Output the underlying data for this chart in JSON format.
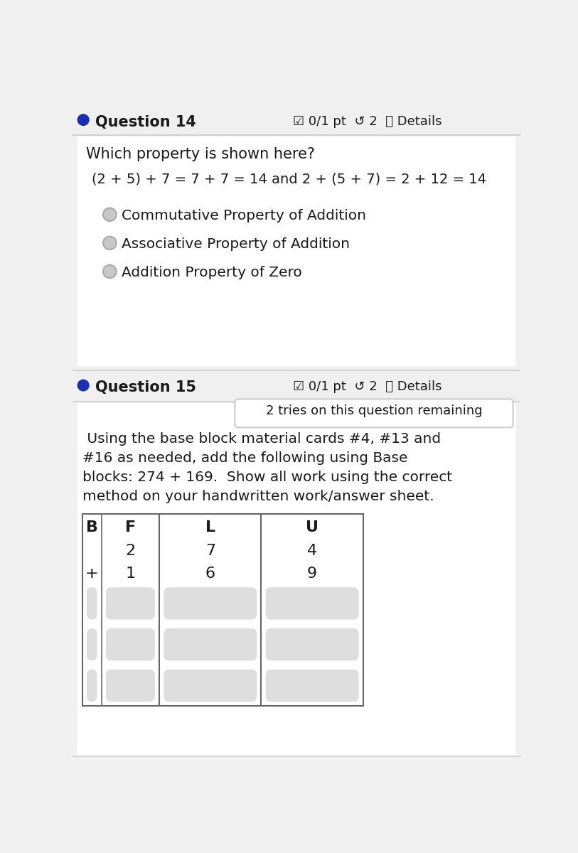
{
  "bg_color": "#f0f0f0",
  "white": "#ffffff",
  "dark_text": "#1a1a1a",
  "blue_dot": "#1a2eb5",
  "radio_fill": "#c8c8c8",
  "radio_border": "#aaaaaa",
  "tooltip_bg": "#ffffff",
  "tooltip_border": "#cccccc",
  "table_border": "#666666",
  "table_cell_bg": "#dedede",
  "separator": "#cccccc",
  "q14_label": "Question 14",
  "q14_header_right": "☑ 0/1 pt  ↺ 2  ⓘ Details",
  "q14_prompt": "Which property is shown here?",
  "q14_equation": "(2 + 5) + 7 = 7 + 7 = 14 and 2 + (5 + 7) = 2 + 12 = 14",
  "q14_options": [
    "Commutative Property of Addition",
    "Associative Property of Addition",
    "Addition Property of Zero"
  ],
  "q15_label": "Question 15",
  "q15_header_right": "☑ 0/1 pt  ↺ 2  ⓘ Details",
  "tooltip_text": "2 tries on this question remaining",
  "q15_lines": [
    " Using the base block material cards #4, #13 and",
    "#16 as needed, add the following using Base",
    "blocks: 274 + 169.  Show all work using the correct",
    "method on your handwritten work/answer sheet."
  ],
  "table_headers": [
    "B",
    "F",
    "L",
    "U"
  ],
  "table_row1": [
    "",
    "2",
    "7",
    "4"
  ],
  "table_row2": [
    "+",
    "1",
    "6",
    "9"
  ]
}
